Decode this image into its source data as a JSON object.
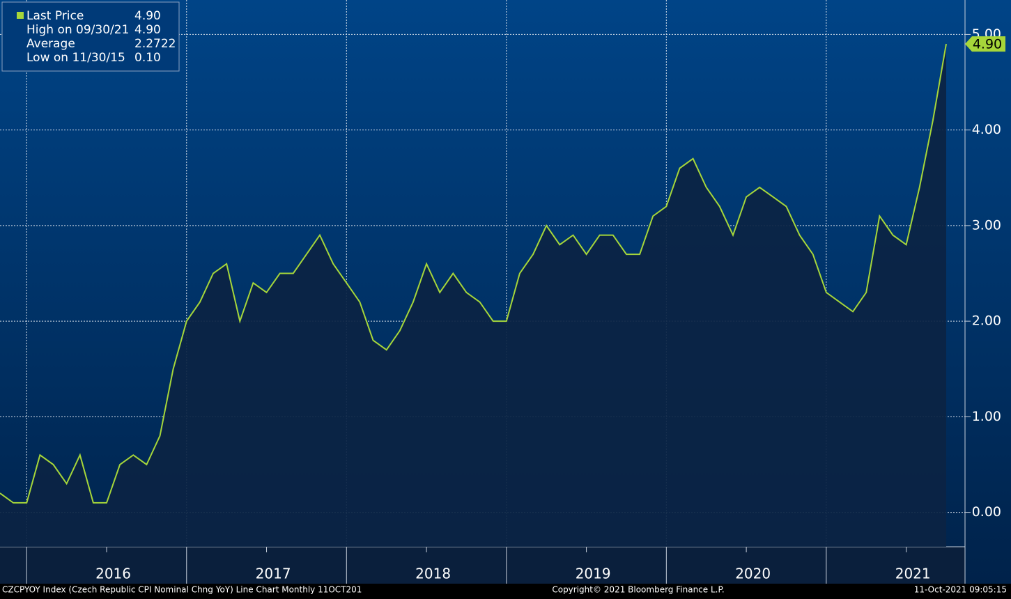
{
  "chart_data": {
    "type": "line",
    "footer_left": "CZCPYOY Index (Czech Republic CPI Nominal Chng YoY) Line Chart  Monthly 11OCT201",
    "footer_center": "Copyright© 2021 Bloomberg Finance L.P.",
    "footer_right": "11-Oct-2021 09:05:15",
    "legend": [
      {
        "label": "Last Price",
        "value": "4.90"
      },
      {
        "label": "High on 09/30/21",
        "value": "4.90"
      },
      {
        "label": "Average",
        "value": "2.2722"
      },
      {
        "label": "Low on 11/30/15",
        "value": "0.10"
      }
    ],
    "x": [
      "2015-10",
      "2015-11",
      "2015-12",
      "2016-01",
      "2016-02",
      "2016-03",
      "2016-04",
      "2016-05",
      "2016-06",
      "2016-07",
      "2016-08",
      "2016-09",
      "2016-10",
      "2016-11",
      "2016-12",
      "2017-01",
      "2017-02",
      "2017-03",
      "2017-04",
      "2017-05",
      "2017-06",
      "2017-07",
      "2017-08",
      "2017-09",
      "2017-10",
      "2017-11",
      "2017-12",
      "2018-01",
      "2018-02",
      "2018-03",
      "2018-04",
      "2018-05",
      "2018-06",
      "2018-07",
      "2018-08",
      "2018-09",
      "2018-10",
      "2018-11",
      "2018-12",
      "2019-01",
      "2019-02",
      "2019-03",
      "2019-04",
      "2019-05",
      "2019-06",
      "2019-07",
      "2019-08",
      "2019-09",
      "2019-10",
      "2019-11",
      "2019-12",
      "2020-01",
      "2020-02",
      "2020-03",
      "2020-04",
      "2020-05",
      "2020-06",
      "2020-07",
      "2020-08",
      "2020-09",
      "2020-10",
      "2020-11",
      "2020-12",
      "2021-01",
      "2021-02",
      "2021-03",
      "2021-04",
      "2021-05",
      "2021-06",
      "2021-07",
      "2021-08",
      "2021-09"
    ],
    "series": [
      {
        "name": "Last Price",
        "color": "#a6d63a",
        "values": [
          0.2,
          0.1,
          0.1,
          0.6,
          0.5,
          0.3,
          0.6,
          0.1,
          0.1,
          0.5,
          0.6,
          0.5,
          0.8,
          1.5,
          2.0,
          2.2,
          2.5,
          2.6,
          2.0,
          2.4,
          2.3,
          2.5,
          2.5,
          2.7,
          2.9,
          2.6,
          2.4,
          2.2,
          1.8,
          1.7,
          1.9,
          2.2,
          2.6,
          2.3,
          2.5,
          2.3,
          2.2,
          2.0,
          2.0,
          2.5,
          2.7,
          3.0,
          2.8,
          2.9,
          2.7,
          2.9,
          2.9,
          2.7,
          2.7,
          3.1,
          3.2,
          3.6,
          3.7,
          3.4,
          3.2,
          2.9,
          3.3,
          3.4,
          3.3,
          3.2,
          2.9,
          2.7,
          2.3,
          2.2,
          2.1,
          2.3,
          3.1,
          2.9,
          2.8,
          3.4,
          4.1,
          4.9
        ]
      }
    ],
    "xticks": [
      2016,
      2017,
      2018,
      2019,
      2020,
      2021
    ],
    "ylim": [
      -0.36,
      5.36
    ],
    "yticks": [
      {
        "value": 0,
        "label": "0.00"
      },
      {
        "value": 1,
        "label": "1.00"
      },
      {
        "value": 2,
        "label": "2.00"
      },
      {
        "value": 3,
        "label": "3.00"
      },
      {
        "value": 4,
        "label": "4.00"
      },
      {
        "value": 5,
        "label": "5.00"
      }
    ],
    "grid": true
  }
}
